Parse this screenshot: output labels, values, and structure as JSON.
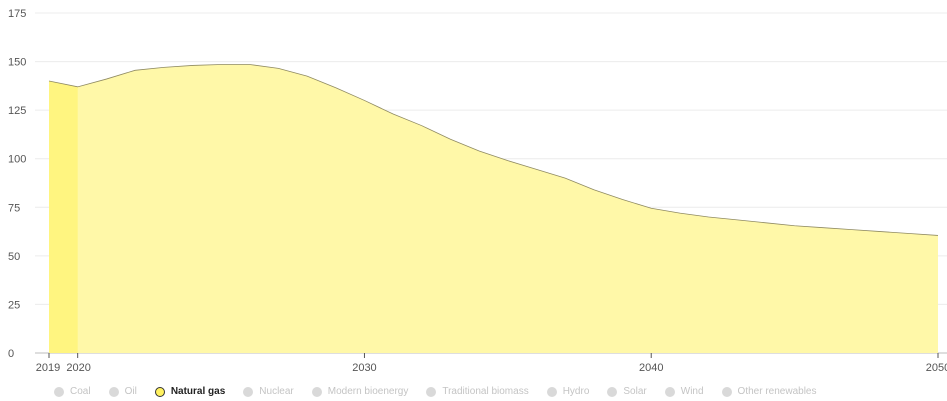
{
  "chart_data": {
    "type": "area",
    "title": "",
    "xlabel": "",
    "ylabel": "",
    "xlim": [
      2019,
      2050
    ],
    "ylim": [
      0,
      175
    ],
    "y_ticks": [
      0,
      25,
      50,
      75,
      100,
      125,
      150,
      175
    ],
    "x_ticks": [
      2019,
      2020,
      2030,
      2040,
      2050
    ],
    "grid": true,
    "legend_position": "bottom",
    "series": [
      {
        "name": "Natural gas",
        "color": "#fff8a8",
        "highlight_color": "#fff580",
        "x": [
          2019,
          2020,
          2021,
          2022,
          2023,
          2024,
          2025,
          2026,
          2027,
          2028,
          2029,
          2030,
          2031,
          2032,
          2033,
          2034,
          2035,
          2036,
          2037,
          2038,
          2039,
          2040,
          2041,
          2042,
          2043,
          2044,
          2045,
          2046,
          2047,
          2048,
          2049,
          2050
        ],
        "values": [
          140,
          137,
          141,
          145.5,
          147,
          148,
          148.5,
          148.5,
          146.5,
          142.5,
          136.5,
          130,
          123,
          117,
          110,
          104,
          99,
          94.5,
          90,
          84,
          79,
          74.5,
          72,
          70,
          68.5,
          67,
          65.5,
          64.5,
          63.5,
          62.5,
          61.5,
          60.5
        ]
      }
    ]
  },
  "legend": [
    {
      "label": "Coal",
      "active": false
    },
    {
      "label": "Oil",
      "active": false
    },
    {
      "label": "Natural gas",
      "active": true
    },
    {
      "label": "Nuclear",
      "active": false
    },
    {
      "label": "Modern bioenergy",
      "active": false
    },
    {
      "label": "Traditional biomass",
      "active": false
    },
    {
      "label": "Hydro",
      "active": false
    },
    {
      "label": "Solar",
      "active": false
    },
    {
      "label": "Wind",
      "active": false
    },
    {
      "label": "Other renewables",
      "active": false
    }
  ]
}
